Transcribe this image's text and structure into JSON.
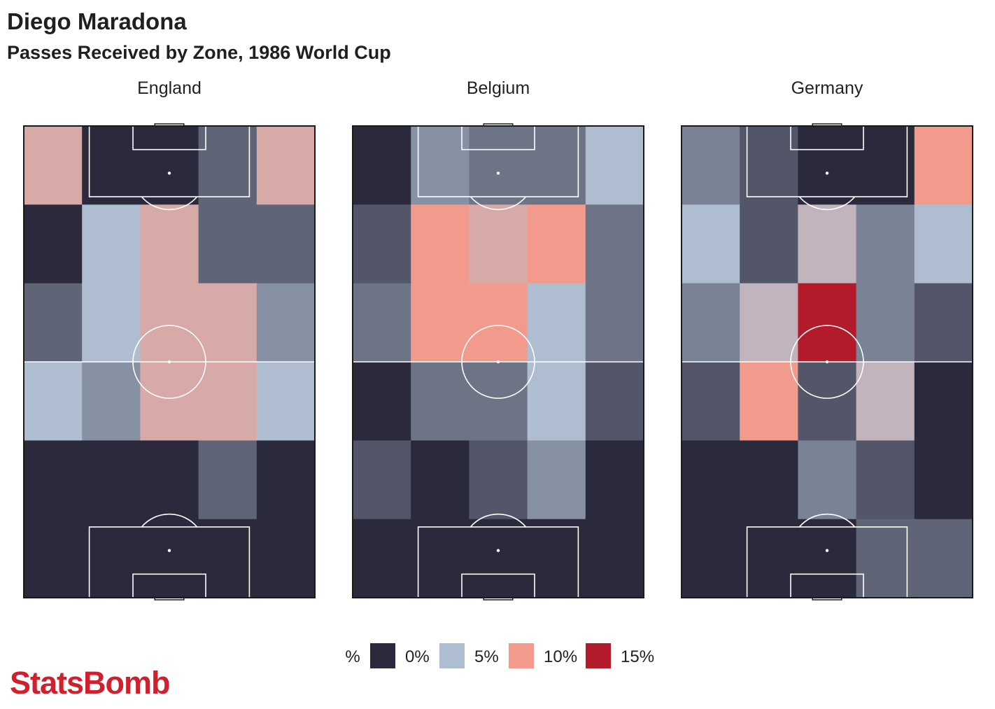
{
  "header": {
    "title": "Diego Maradona",
    "subtitle": "Passes Received by Zone, 1986 World Cup"
  },
  "brand": {
    "logo_text": "StatsBomb"
  },
  "colors": {
    "scale": [
      "#2a2a3c",
      "#aebed0",
      "#f29b8c",
      "#b31b2a"
    ],
    "pitch_lines": "#ffffff",
    "frame": "#1a1a1a"
  },
  "chart_data": {
    "type": "heatmap",
    "title": "Passes Received by Zone, 1986 World Cup",
    "value_unit": "%",
    "grid": {
      "rows": 6,
      "columns": 5,
      "row_order": "attacking end (top) to defensive end (bottom)"
    },
    "color_scale_range": [
      0,
      15
    ],
    "legend": {
      "label": "%",
      "placement": "bottom-center",
      "items": [
        {
          "label": "0%",
          "value": 0
        },
        {
          "label": "5%",
          "value": 5
        },
        {
          "label": "10%",
          "value": 10
        },
        {
          "label": "15%",
          "value": 15
        }
      ]
    },
    "panels": [
      {
        "name": "England",
        "values": [
          [
            8,
            0,
            0,
            2,
            8
          ],
          [
            0,
            5,
            8,
            2,
            2
          ],
          [
            2,
            5,
            8,
            8,
            3.5
          ],
          [
            5,
            3.5,
            8,
            8,
            5
          ],
          [
            0,
            0,
            0,
            2,
            0
          ],
          [
            0,
            0,
            0,
            0,
            0
          ]
        ]
      },
      {
        "name": "Belgium",
        "values": [
          [
            0,
            3.5,
            2.5,
            2.5,
            5
          ],
          [
            1.5,
            10,
            8,
            10,
            2.5
          ],
          [
            2.5,
            10,
            10,
            5,
            2.5
          ],
          [
            0,
            2.5,
            2.5,
            5,
            1.5
          ],
          [
            1.5,
            0,
            1.5,
            3.5,
            0
          ],
          [
            0,
            0,
            0,
            0,
            0
          ]
        ]
      },
      {
        "name": "Germany",
        "values": [
          [
            3,
            1.5,
            0,
            0,
            10
          ],
          [
            5,
            1.5,
            6.5,
            3,
            5
          ],
          [
            3,
            6.5,
            15,
            3,
            1.5
          ],
          [
            1.5,
            10,
            1.5,
            6.5,
            0
          ],
          [
            0,
            0,
            3,
            1.5,
            0
          ],
          [
            0,
            0,
            0,
            2,
            2
          ]
        ]
      }
    ]
  }
}
